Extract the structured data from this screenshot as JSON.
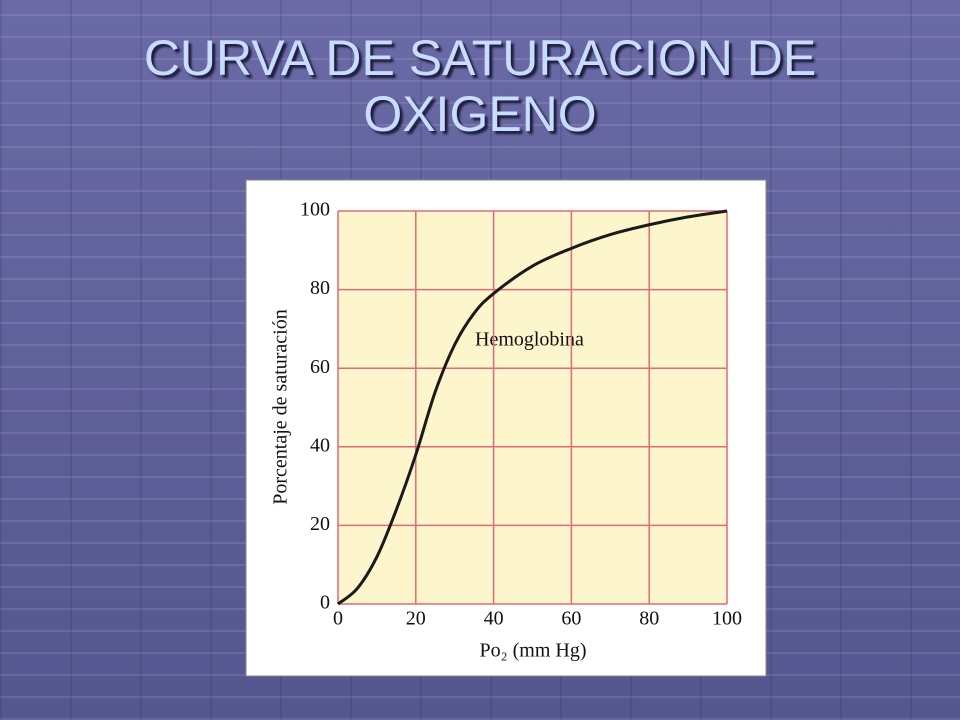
{
  "chart_data": {
    "type": "line",
    "title": "CURVA  DE  SATURACION DE OXIGENO",
    "x_label": "Po₂ (mm Hg)",
    "y_label": "Porcentaje de saturación",
    "annotation": "Hemoglobina",
    "x": [
      0,
      5,
      10,
      15,
      20,
      25,
      30,
      35,
      40,
      50,
      60,
      70,
      80,
      90,
      100
    ],
    "series": [
      {
        "name": "Hemoglobina",
        "color": "#1a1a1a",
        "values": [
          0,
          4,
          12,
          24,
          38,
          54,
          66,
          74,
          79,
          86,
          90.5,
          94,
          96.5,
          98.5,
          100
        ]
      }
    ],
    "xlim": [
      0,
      100
    ],
    "ylim": [
      0,
      100
    ],
    "xticks": [
      0,
      20,
      40,
      60,
      80,
      100
    ],
    "yticks": [
      0,
      20,
      40,
      60,
      80,
      100
    ],
    "grid": true,
    "grid_color": "#e06a78",
    "plot_background": "#fdf6cc"
  }
}
